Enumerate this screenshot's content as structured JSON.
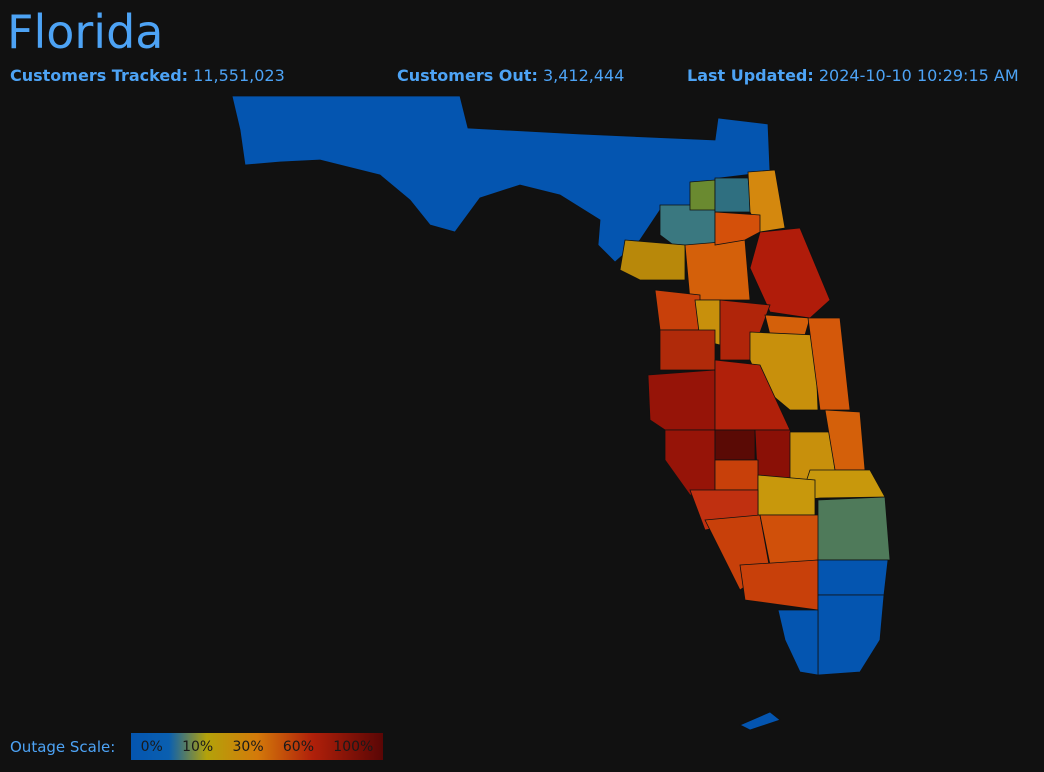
{
  "header": {
    "title": "Florida"
  },
  "stats": [
    {
      "label": "Customers Tracked:",
      "value": "11,551,023"
    },
    {
      "label": "Customers Out:",
      "value": "3,412,444"
    },
    {
      "label": "Last Updated:",
      "value": "2024-10-10 10:29:15 AM"
    }
  ],
  "legend": {
    "title": "Outage Scale:",
    "labels": [
      "0%",
      "10%",
      "30%",
      "60%",
      "100%"
    ]
  }
}
